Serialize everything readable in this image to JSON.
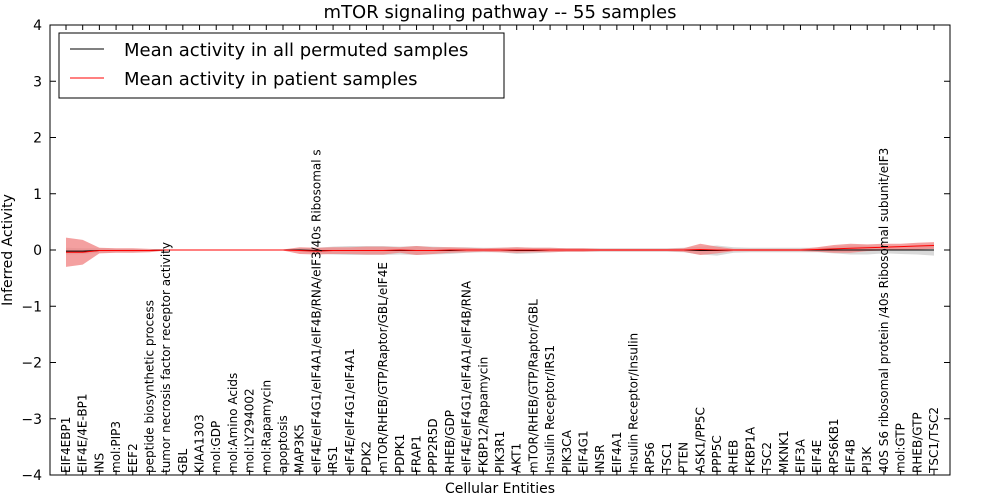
{
  "chart_data": {
    "type": "line",
    "title": "mTOR signaling pathway -- 55 samples",
    "xlabel": "Cellular Entities",
    "ylabel": "Inferred Activity",
    "ylim": [
      -4,
      4
    ],
    "yticks": [
      -4,
      -3,
      -2,
      -1,
      0,
      1,
      2,
      3,
      4
    ],
    "ytick_labels": [
      "−4",
      "−3",
      "−2",
      "−1",
      "0",
      "1",
      "2",
      "3",
      "4"
    ],
    "grid": false,
    "legend_position": "top-left",
    "categories": [
      "EIF4EBP1",
      "EIF4E/4E-BP1",
      "INS",
      "mol:PIP3",
      "EEF2",
      "peptide biosynthetic process",
      "tumor necrosis factor receptor activity",
      "GBL",
      "KIAA1303",
      "mol:GDP",
      "mol:Amino Acids",
      "mol:LY294002",
      "mol:Rapamycin",
      "apoptosis",
      "MAP3K5",
      "eIF4E/eIF4G1/eIF4A1/eIF4B/RNA/eIF3/40s Ribosomal s",
      "IRS1",
      "eIF4E/eIF4G1/eIF4A1",
      "PDK2",
      "mTOR/RHEB/GTP/Raptor/GBL/eIF4E",
      "PDPK1",
      "FRAP1",
      "PPP2R5D",
      "RHEB/GDP",
      "eIF4E/eIF4G1/eIF4A1/eIF4B/RNA",
      "FKBP12/Rapamycin",
      "PIK3R1",
      "AKT1",
      "mTOR/RHEB/GTP/Raptor/GBL",
      "Insulin Receptor/IRS1",
      "PIK3CA",
      "EIF4G1",
      "INSR",
      "EIF4A1",
      "Insulin Receptor/Insulin",
      "RPS6",
      "TSC1",
      "PTEN",
      "ASK1/PP5C",
      "PPP5C",
      "RHEB",
      "FKBP1A",
      "TSC2",
      "MKNK1",
      "EIF3A",
      "EIF4E",
      "RPS6KB1",
      "EIF4B",
      "PI3K",
      "40S S6 ribosomal protein /40s Ribosomal subunit/eIF3",
      "mol:GTP",
      "RHEB/GTP",
      "TSC1/TSC2"
    ],
    "series": [
      {
        "name": "Mean activity in all permuted samples",
        "color": "#000000",
        "band_color": "#bfbfbf",
        "values": [
          -0.02,
          -0.02,
          -0.01,
          -0.01,
          -0.01,
          -0.01,
          0,
          0,
          0,
          0,
          0,
          0,
          0,
          0,
          0,
          -0.01,
          -0.01,
          -0.01,
          -0.01,
          -0.01,
          -0.01,
          -0.01,
          -0.01,
          -0.01,
          0,
          0,
          0,
          -0.01,
          -0.01,
          0,
          0,
          0,
          0,
          0,
          0,
          0,
          0,
          0,
          -0.01,
          -0.01,
          0,
          0,
          0,
          0,
          0,
          0,
          0,
          0,
          0,
          0,
          0,
          0,
          0
        ],
        "spread": [
          0.06,
          0.05,
          0.04,
          0.03,
          0.03,
          0.02,
          0.01,
          0.01,
          0.01,
          0.01,
          0.01,
          0.01,
          0.01,
          0.01,
          0.03,
          0.05,
          0.07,
          0.08,
          0.08,
          0.08,
          0.07,
          0.08,
          0.07,
          0.06,
          0.05,
          0.04,
          0.04,
          0.06,
          0.05,
          0.04,
          0.03,
          0.03,
          0.03,
          0.03,
          0.03,
          0.03,
          0.03,
          0.04,
          0.07,
          0.09,
          0.05,
          0.04,
          0.04,
          0.04,
          0.04,
          0.04,
          0.06,
          0.08,
          0.08,
          0.06,
          0.07,
          0.08,
          0.1
        ]
      },
      {
        "name": "Mean activity in patient samples",
        "color": "#ff0000",
        "band_color": "#f08080",
        "values": [
          -0.04,
          -0.04,
          -0.01,
          -0.01,
          -0.01,
          -0.01,
          0,
          0,
          0,
          0,
          0,
          0,
          0,
          0,
          -0.01,
          -0.02,
          -0.01,
          -0.01,
          -0.01,
          -0.01,
          0,
          -0.01,
          -0.01,
          0,
          0,
          0,
          0,
          0,
          0,
          0,
          0,
          0,
          0,
          0,
          0,
          0,
          0,
          0,
          0.01,
          0,
          0,
          0,
          0,
          0,
          0,
          0.01,
          0.02,
          0.03,
          0.04,
          0.05,
          0.06,
          0.07,
          0.08
        ],
        "spread": [
          0.26,
          0.22,
          0.05,
          0.04,
          0.04,
          0.03,
          0.01,
          0.01,
          0.01,
          0.01,
          0.01,
          0.01,
          0.01,
          0.01,
          0.06,
          0.06,
          0.06,
          0.06,
          0.07,
          0.07,
          0.05,
          0.08,
          0.06,
          0.05,
          0.04,
          0.03,
          0.04,
          0.05,
          0.04,
          0.04,
          0.03,
          0.03,
          0.02,
          0.02,
          0.02,
          0.02,
          0.02,
          0.03,
          0.1,
          0.06,
          0.02,
          0.02,
          0.02,
          0.02,
          0.02,
          0.04,
          0.07,
          0.08,
          0.06,
          0.06,
          0.05,
          0.06,
          0.06
        ]
      }
    ]
  }
}
